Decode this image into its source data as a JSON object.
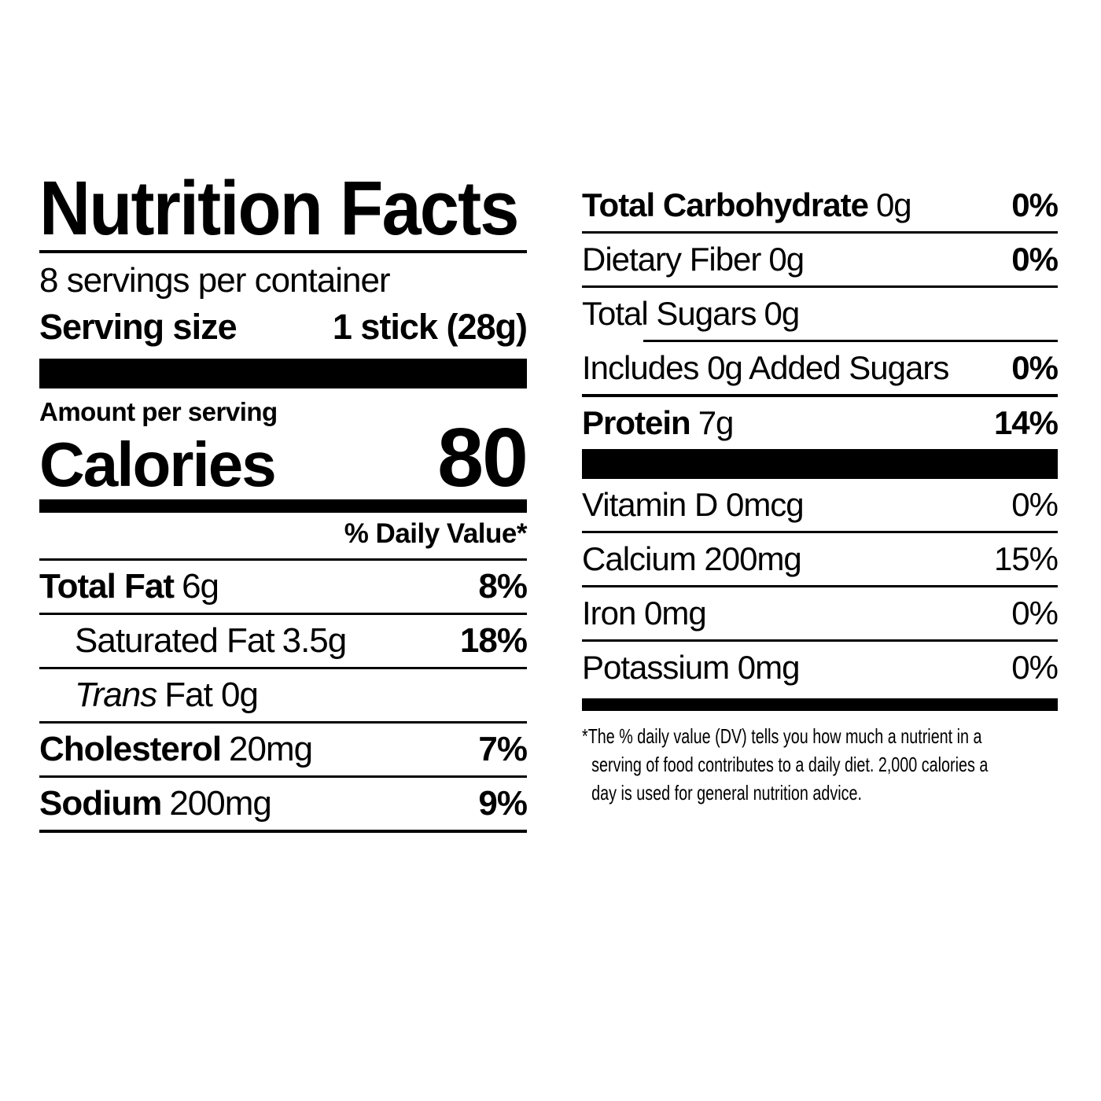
{
  "label": {
    "title": "Nutrition Facts",
    "servings_per_container": "8 servings per container",
    "serving_size": {
      "label": "Serving size",
      "value": "1 stick (28g)"
    },
    "amount_per_serving": "Amount per serving",
    "calories": {
      "label": "Calories",
      "value": "80"
    },
    "daily_value_header": "% Daily Value*",
    "nutrients": [
      {
        "lead": "Total Fat",
        "amount": "6g",
        "dv": "8%"
      },
      {
        "lead": "Saturated Fat",
        "amount": "3.5g",
        "dv": "18%"
      },
      {
        "lead": "Trans",
        "amount": "Fat 0g",
        "dv": ""
      },
      {
        "lead": "Cholesterol",
        "amount": "20mg",
        "dv": "7%"
      },
      {
        "lead": "Sodium",
        "amount": "200mg",
        "dv": "9%"
      },
      {
        "lead": "Total Carbohydrate",
        "amount": "0g",
        "dv": "0%"
      },
      {
        "lead": "Dietary Fiber",
        "amount": "0g",
        "dv": "0%"
      },
      {
        "lead": "Total Sugars",
        "amount": "0g",
        "dv": ""
      },
      {
        "lead": "Includes 0g Added Sugars",
        "amount": "",
        "dv": "0%"
      },
      {
        "lead": "Protein",
        "amount": "7g",
        "dv": "14%"
      }
    ],
    "micronutrients": [
      {
        "name": "Vitamin D 0mcg",
        "dv": "0%"
      },
      {
        "name": "Calcium 200mg",
        "dv": "15%"
      },
      {
        "name": "Iron 0mg",
        "dv": "0%"
      },
      {
        "name": "Potassium 0mg",
        "dv": "0%"
      }
    ],
    "footnote_lines": [
      "*The % daily value (DV) tells you how much a nutrient in a",
      "serving of food contributes to a daily diet. 2,000 calories a",
      "day is used for general nutrition advice."
    ],
    "colors": {
      "ink": "#000000",
      "background": "#ffffff"
    }
  }
}
